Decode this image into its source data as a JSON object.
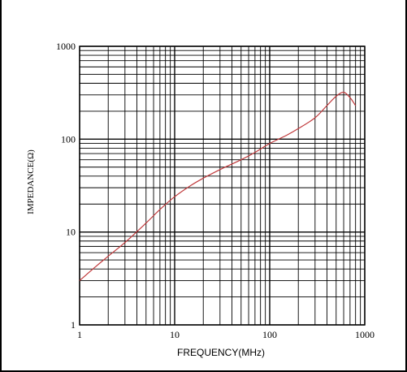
{
  "chart_data": {
    "type": "line",
    "title": "",
    "xlabel": "FREQUENCY(MHz)",
    "ylabel": "IMPEDANCE(Ω)",
    "x_scale": "log",
    "y_scale": "log",
    "xlim": [
      1,
      1000
    ],
    "ylim": [
      1,
      1000
    ],
    "x_ticks": [
      "1",
      "10",
      "100",
      "1000"
    ],
    "y_ticks": [
      "1",
      "10",
      "100",
      "1000"
    ],
    "grid": true,
    "series": [
      {
        "color": "#c0393b",
        "x": [
          1,
          1.5,
          2,
          3,
          5,
          7,
          10,
          15,
          20,
          30,
          50,
          70,
          100,
          150,
          200,
          300,
          400,
          500,
          600,
          700,
          800
        ],
        "y": [
          3.0,
          4.3,
          5.5,
          7.7,
          12.5,
          17.5,
          24,
          32,
          38,
          47,
          60,
          72,
          90,
          110,
          130,
          170,
          230,
          290,
          320,
          280,
          230
        ]
      }
    ]
  }
}
